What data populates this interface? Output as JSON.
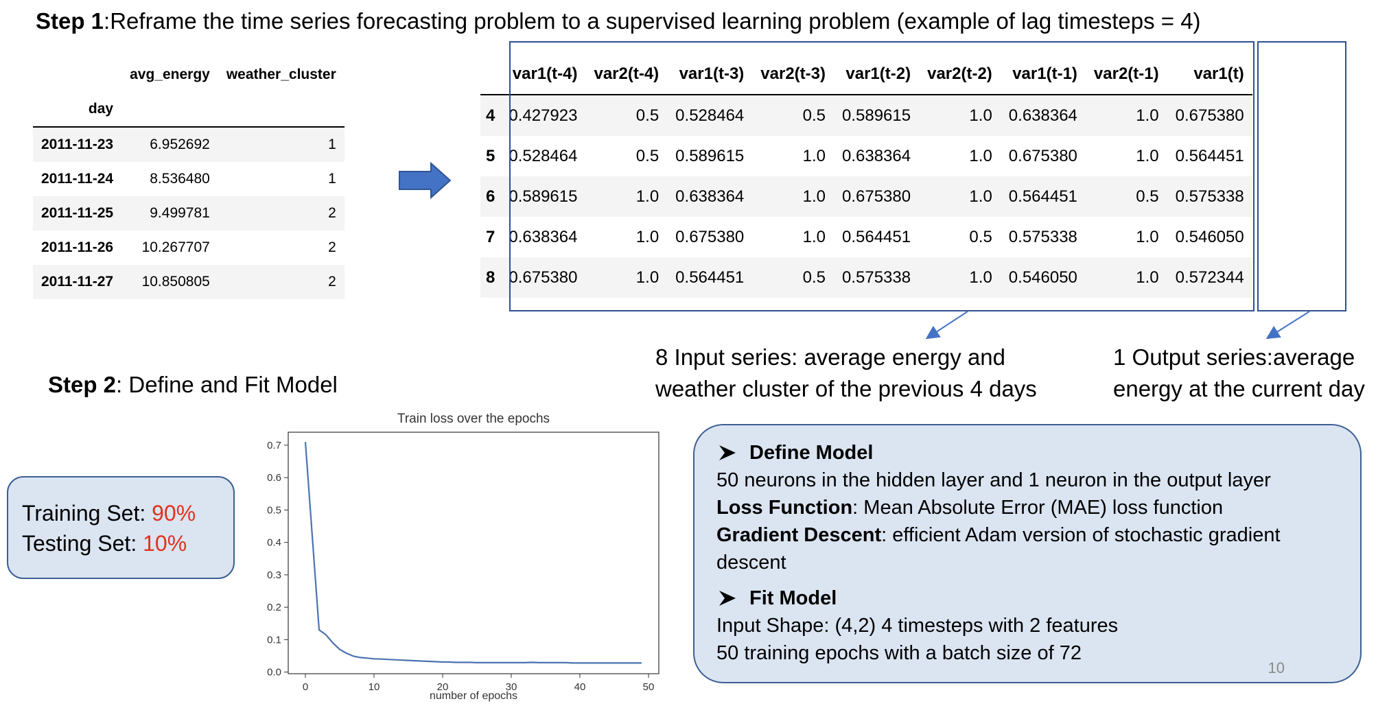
{
  "step1": {
    "label": "Step 1",
    "text": ":Reframe the time series forecasting problem to a supervised learning problem (example of lag timesteps = 4)"
  },
  "source_table": {
    "columns": [
      "avg_energy",
      "weather_cluster"
    ],
    "index_name": "day",
    "rows": [
      {
        "day": "2011-11-23",
        "avg_energy": "6.952692",
        "weather_cluster": "1"
      },
      {
        "day": "2011-11-24",
        "avg_energy": "8.536480",
        "weather_cluster": "1"
      },
      {
        "day": "2011-11-25",
        "avg_energy": "9.499781",
        "weather_cluster": "2"
      },
      {
        "day": "2011-11-26",
        "avg_energy": "10.267707",
        "weather_cluster": "2"
      },
      {
        "day": "2011-11-27",
        "avg_energy": "10.850805",
        "weather_cluster": "2"
      }
    ]
  },
  "arrow_icon": "right-arrow-icon",
  "supervised_table": {
    "columns": [
      "var1(t-4)",
      "var2(t-4)",
      "var1(t-3)",
      "var2(t-3)",
      "var1(t-2)",
      "var2(t-2)",
      "var1(t-1)",
      "var2(t-1)",
      "var1(t)"
    ],
    "rows": [
      {
        "idx": "4",
        "cells": [
          "0.427923",
          "0.5",
          "0.528464",
          "0.5",
          "0.589615",
          "1.0",
          "0.638364",
          "1.0",
          "0.675380"
        ]
      },
      {
        "idx": "5",
        "cells": [
          "0.528464",
          "0.5",
          "0.589615",
          "1.0",
          "0.638364",
          "1.0",
          "0.675380",
          "1.0",
          "0.564451"
        ]
      },
      {
        "idx": "6",
        "cells": [
          "0.589615",
          "1.0",
          "0.638364",
          "1.0",
          "0.675380",
          "1.0",
          "0.564451",
          "0.5",
          "0.575338"
        ]
      },
      {
        "idx": "7",
        "cells": [
          "0.638364",
          "1.0",
          "0.675380",
          "1.0",
          "0.564451",
          "0.5",
          "0.575338",
          "1.0",
          "0.546050"
        ]
      },
      {
        "idx": "8",
        "cells": [
          "0.675380",
          "1.0",
          "0.564451",
          "0.5",
          "0.575338",
          "1.0",
          "0.546050",
          "1.0",
          "0.572344"
        ]
      }
    ]
  },
  "input_note": [
    "8 Input series: average energy and",
    "weather cluster of the previous 4 days"
  ],
  "output_note": [
    "1 Output series:average",
    "energy at the current day"
  ],
  "step2": {
    "label": "Step 2",
    "text": ": Define and Fit Model"
  },
  "split": {
    "train_label": "Training Set: ",
    "train_value": "90%",
    "test_label": "Testing Set: ",
    "test_value": "10%",
    "value_color": "#e0321e"
  },
  "chart_data": {
    "type": "line",
    "title": "Train loss over the epochs",
    "xlabel": "number of epochs",
    "ylabel": "",
    "xlim": [
      -2.5,
      51.5
    ],
    "ylim": [
      -0.005,
      0.74
    ],
    "x_ticks": [
      "0",
      "10",
      "20",
      "30",
      "40",
      "50"
    ],
    "y_ticks": [
      "0.0",
      "0.1",
      "0.2",
      "0.3",
      "0.4",
      "0.5",
      "0.6",
      "0.7"
    ],
    "line_color": "#4c72b0",
    "series": [
      {
        "x": [
          0,
          1,
          2,
          3,
          4,
          5,
          6,
          7,
          8,
          9,
          10,
          11,
          12,
          13,
          14,
          15,
          16,
          17,
          18,
          19,
          20,
          21,
          22,
          23,
          24,
          25,
          26,
          27,
          28,
          29,
          30,
          31,
          32,
          33,
          34,
          35,
          36,
          37,
          38,
          39,
          40,
          41,
          42,
          43,
          44,
          45,
          46,
          47,
          48,
          49
        ],
        "values": [
          0.71,
          0.42,
          0.13,
          0.115,
          0.09,
          0.07,
          0.058,
          0.049,
          0.045,
          0.043,
          0.041,
          0.04,
          0.039,
          0.038,
          0.037,
          0.036,
          0.035,
          0.034,
          0.033,
          0.032,
          0.031,
          0.031,
          0.03,
          0.03,
          0.03,
          0.029,
          0.029,
          0.029,
          0.029,
          0.029,
          0.029,
          0.029,
          0.029,
          0.03,
          0.029,
          0.029,
          0.029,
          0.029,
          0.029,
          0.028,
          0.028,
          0.028,
          0.028,
          0.028,
          0.028,
          0.028,
          0.028,
          0.028,
          0.028,
          0.028
        ]
      }
    ]
  },
  "model": {
    "define_title": "Define Model",
    "define_line1": "50 neurons in the hidden layer and 1 neuron in the output layer",
    "loss_label": "Loss Function",
    "loss_text": ": Mean Absolute Error (MAE) loss function",
    "gd_label": "Gradient Descent",
    "gd_text": ": efficient Adam version of stochastic gradient",
    "gd_text2": "descent",
    "fit_title": "Fit Model",
    "fit_line1": "Input Shape: (4,2)  4 timesteps with 2 features",
    "fit_line2": "50 training epochs with a batch size of 72",
    "page_number": "10"
  }
}
